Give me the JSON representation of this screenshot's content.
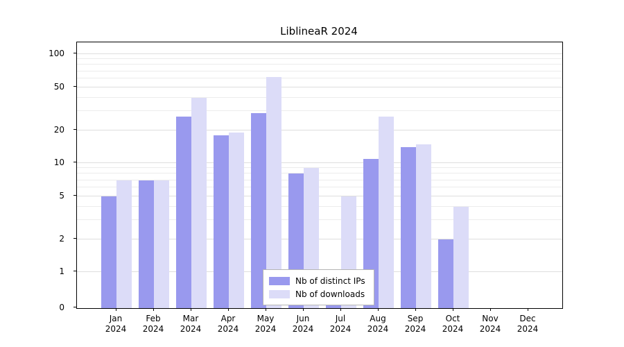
{
  "title": "LiblineaR 2024",
  "chart_data": {
    "type": "bar",
    "title": "LiblineaR 2024",
    "categories": [
      "Jan 2024",
      "Feb 2024",
      "Mar 2024",
      "Apr 2024",
      "May 2024",
      "Jun 2024",
      "Jul 2024",
      "Aug 2024",
      "Sep 2024",
      "Oct 2024",
      "Nov 2024",
      "Dec 2024"
    ],
    "series": [
      {
        "name": "Nb of distinct IPs",
        "color": "#9999ee",
        "values": [
          5,
          7,
          27,
          18,
          29,
          8,
          1,
          11,
          14,
          2,
          0,
          0
        ]
      },
      {
        "name": "Nb of downloads",
        "color": "#dcdcf8",
        "values": [
          7,
          7,
          40,
          19,
          62,
          9,
          5,
          27,
          15,
          4,
          0,
          0
        ]
      }
    ],
    "yscale": "log",
    "yticks": [
      0,
      1,
      2,
      5,
      10,
      20,
      50,
      100
    ],
    "minor_gridlines": [
      3,
      4,
      6,
      7,
      8,
      9,
      30,
      40,
      60,
      70,
      80,
      90
    ],
    "ylim_log": [
      -0.33,
      2.11
    ],
    "xlabel": "",
    "ylabel": "",
    "grid": true,
    "legend_position": "bottom-center"
  }
}
